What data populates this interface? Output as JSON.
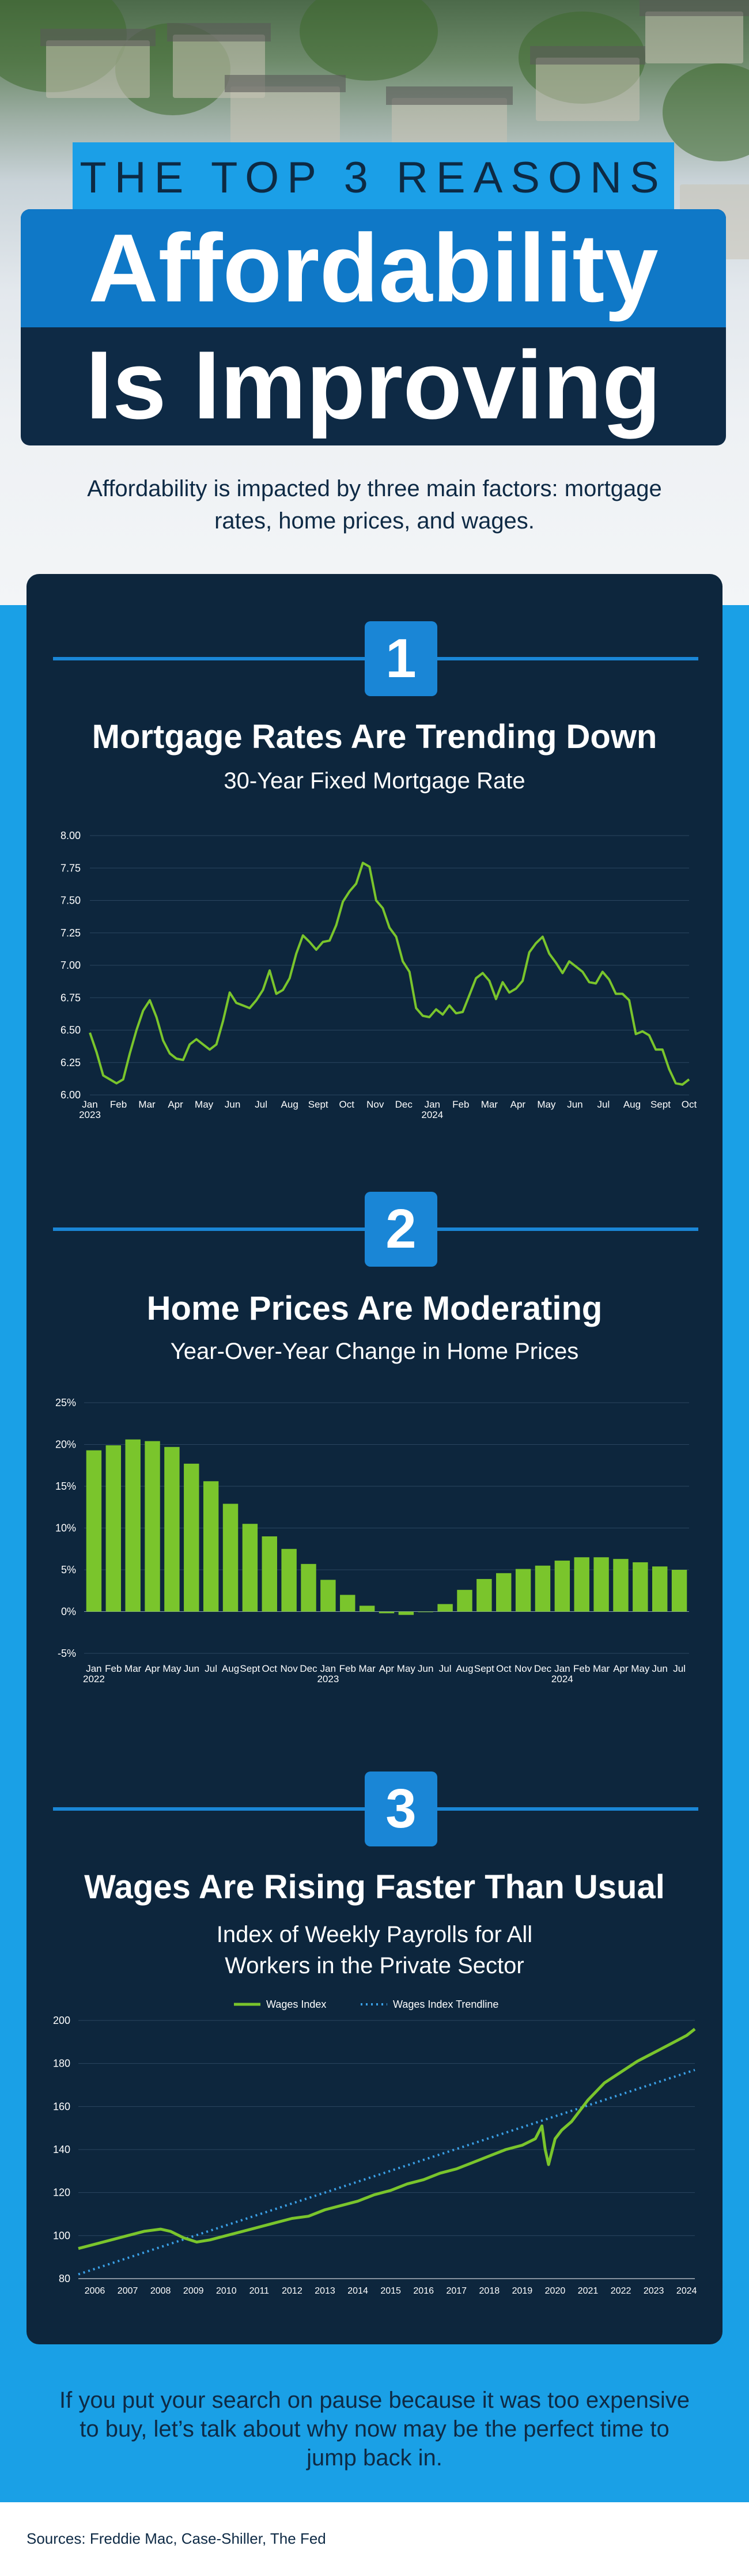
{
  "header": {
    "kicker": "THE TOP 3 REASONS",
    "title_line1": "Affordability",
    "title_line2": "Is Improving",
    "intro": "Affordability is impacted by three main factors: mortgage rates, home prices, and wages."
  },
  "sections": [
    {
      "number": "1",
      "title": "Mortgage Rates Are Trending Down",
      "subtitle": "30-Year Fixed Mortgage Rate"
    },
    {
      "number": "2",
      "title": "Home Prices Are Moderating",
      "subtitle": "Year-Over-Year Change in Home Prices"
    },
    {
      "number": "3",
      "title": "Wages Are Rising Faster Than Usual",
      "subtitle": "Index of Weekly Payrolls for All Workers in the Private Sector"
    }
  ],
  "outro": "If you put your search on pause because it was too expensive to buy, let’s talk about why now may be the perfect time to jump back in.",
  "sources": "Sources: Freddie Mac, Case-Shiller, The Fed",
  "colors": {
    "panel": "#0d263d",
    "accent": "#1a86d6",
    "series_green": "#7ac52c",
    "trend_blue": "#3aa0e6"
  },
  "chart_data": [
    {
      "type": "line",
      "title": "30-Year Fixed Mortgage Rate",
      "ylim": [
        6.0,
        8.0
      ],
      "yticks": [
        "8.00",
        "7.75",
        "7.50",
        "7.25",
        "7.00",
        "6.75",
        "6.50",
        "6.25",
        "6.00"
      ],
      "xticks": [
        "Jan\n2023",
        "Feb",
        "Mar",
        "Apr",
        "May",
        "Jun",
        "Jul",
        "Aug",
        "Sept",
        "Oct",
        "Nov",
        "Dec",
        "Jan\n2024",
        "Feb",
        "Mar",
        "Apr",
        "May",
        "Jun",
        "Jul",
        "Aug",
        "Sept",
        "Oct"
      ],
      "series": [
        {
          "values": [
            6.48,
            6.33,
            6.15,
            6.12,
            6.09,
            6.12,
            6.32,
            6.5,
            6.65,
            6.73,
            6.6,
            6.42,
            6.32,
            6.28,
            6.27,
            6.39,
            6.43,
            6.39,
            6.35,
            6.39,
            6.57,
            6.79,
            6.71,
            6.69,
            6.67,
            6.73,
            6.81,
            6.96,
            6.78,
            6.81,
            6.9,
            7.09,
            7.23,
            7.18,
            7.12,
            7.18,
            7.19,
            7.31,
            7.49,
            7.57,
            7.63,
            7.79,
            7.76,
            7.5,
            7.44,
            7.29,
            7.22,
            7.03,
            6.95,
            6.67,
            6.61,
            6.6,
            6.66,
            6.62,
            6.69,
            6.63,
            6.64,
            6.77,
            6.9,
            6.94,
            6.88,
            6.74,
            6.87,
            6.79,
            6.82,
            6.88,
            7.1,
            7.17,
            7.22,
            7.09,
            7.02,
            6.94,
            7.03,
            6.99,
            6.95,
            6.87,
            6.86,
            6.95,
            6.89,
            6.78,
            6.78,
            6.73,
            6.47,
            6.49,
            6.46,
            6.35,
            6.35,
            6.2,
            6.09,
            6.08,
            6.12
          ]
        }
      ]
    },
    {
      "type": "bar",
      "title": "Year-Over-Year Change in Home Prices",
      "ylim": [
        -5,
        25
      ],
      "yticks": [
        "25%",
        "20%",
        "15%",
        "10%",
        "5%",
        "0%",
        "-5%"
      ],
      "categories": [
        "Jan\n2022",
        "Feb",
        "Mar",
        "Apr",
        "May",
        "Jun",
        "Jul",
        "Aug",
        "Sept",
        "Oct",
        "Nov",
        "Dec",
        "Jan\n2023",
        "Feb",
        "Mar",
        "Apr",
        "May",
        "Jun",
        "Jul",
        "Aug",
        "Sept",
        "Oct",
        "Nov",
        "Dec",
        "Jan\n2024",
        "Feb",
        "Mar",
        "Apr",
        "May",
        "Jun",
        "Jul"
      ],
      "values": [
        19.3,
        19.9,
        20.6,
        20.4,
        19.7,
        17.7,
        15.6,
        12.9,
        10.5,
        9.0,
        7.5,
        5.7,
        3.8,
        2.0,
        0.7,
        -0.2,
        -0.4,
        0.0,
        0.9,
        2.6,
        3.9,
        4.6,
        5.1,
        5.5,
        6.1,
        6.5,
        6.5,
        6.3,
        5.9,
        5.4,
        5.0
      ]
    },
    {
      "type": "line",
      "title": "Index of Weekly Payrolls for All Workers in the Private Sector",
      "ylim": [
        80,
        200
      ],
      "yticks": [
        "200",
        "180",
        "160",
        "140",
        "120",
        "100",
        "80"
      ],
      "xticks": [
        "2006",
        "2007",
        "2008",
        "2009",
        "2010",
        "2011",
        "2012",
        "2013",
        "2014",
        "2015",
        "2016",
        "2017",
        "2018",
        "2019",
        "2020",
        "2021",
        "2022",
        "2023",
        "2024"
      ],
      "legend": [
        "Wages Index",
        "Wages Index Trendline"
      ],
      "series": [
        {
          "name": "Wages Index",
          "x": [
            2006.0,
            2006.5,
            2007.0,
            2007.5,
            2008.0,
            2008.5,
            2008.8,
            2009.2,
            2009.6,
            2010.0,
            2010.5,
            2011.0,
            2011.5,
            2012.0,
            2012.5,
            2013.0,
            2013.5,
            2014.0,
            2014.5,
            2015.0,
            2015.5,
            2016.0,
            2016.5,
            2017.0,
            2017.5,
            2018.0,
            2018.5,
            2019.0,
            2019.5,
            2019.9,
            2020.1,
            2020.2,
            2020.3,
            2020.5,
            2020.7,
            2021.0,
            2021.5,
            2022.0,
            2022.5,
            2023.0,
            2023.5,
            2024.0,
            2024.5,
            2024.75
          ],
          "values": [
            94,
            96,
            98,
            100,
            102,
            103,
            102,
            99,
            97,
            98,
            100,
            102,
            104,
            106,
            108,
            109,
            112,
            114,
            116,
            119,
            121,
            124,
            126,
            129,
            131,
            134,
            137,
            140,
            142,
            145,
            151,
            140,
            133,
            145,
            149,
            153,
            163,
            171,
            176,
            181,
            185,
            189,
            193,
            196
          ]
        },
        {
          "name": "Wages Index Trendline",
          "x": [
            2006.0,
            2024.75
          ],
          "values": [
            82,
            177
          ]
        }
      ]
    }
  ]
}
